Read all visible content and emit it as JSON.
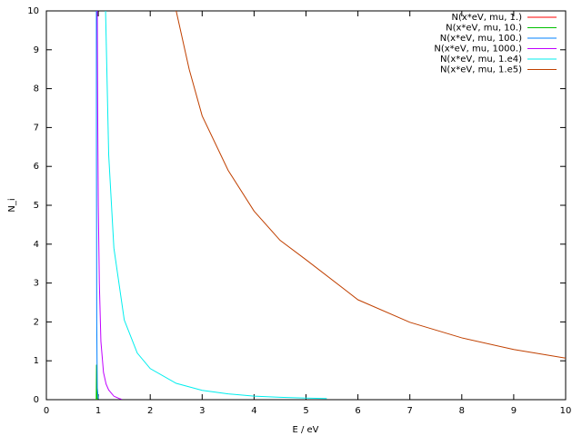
{
  "chart_data": {
    "type": "line",
    "xlabel": "E / eV",
    "ylabel": "N_i",
    "xlim": [
      0,
      10
    ],
    "ylim": [
      0,
      10
    ],
    "xticks": [
      0,
      1,
      2,
      3,
      4,
      5,
      6,
      7,
      8,
      9,
      10
    ],
    "yticks": [
      0,
      1,
      2,
      3,
      4,
      5,
      6,
      7,
      8,
      9,
      10
    ],
    "grid": false,
    "legend": "top-right",
    "series": [
      {
        "name": "N(x*eV, mu, 1.)",
        "color": "#ff0000",
        "x": [
          0.96,
          0.965,
          0.97
        ],
        "values": [
          0,
          0.05,
          0
        ]
      },
      {
        "name": "N(x*eV, mu, 10.)",
        "color": "#00c000",
        "x": [
          0.96,
          0.965,
          0.97,
          0.98
        ],
        "values": [
          0,
          0.9,
          0.3,
          0
        ]
      },
      {
        "name": "N(x*eV, mu, 100.)",
        "color": "#0080ff",
        "x": [
          0.963,
          0.965,
          0.97,
          0.98,
          1.0
        ],
        "values": [
          10,
          6,
          2,
          0.3,
          0.02
        ]
      },
      {
        "name": "N(x*eV, mu, 1000.)",
        "color": "#c000ff",
        "x": [
          0.98,
          0.99,
          1.0,
          1.02,
          1.05,
          1.1,
          1.15,
          1.2,
          1.3,
          1.4,
          1.45
        ],
        "values": [
          10,
          7,
          5,
          3,
          1.5,
          0.7,
          0.4,
          0.25,
          0.09,
          0.03,
          0.01
        ]
      },
      {
        "name": "N(x*eV, mu, 1.e4)",
        "color": "#00eeee",
        "x": [
          1.14,
          1.2,
          1.3,
          1.5,
          1.75,
          2,
          2.5,
          3,
          3.5,
          4,
          4.5,
          5,
          5.4
        ],
        "values": [
          10,
          6.3,
          3.9,
          2.05,
          1.2,
          0.8,
          0.42,
          0.24,
          0.15,
          0.09,
          0.06,
          0.04,
          0.03
        ]
      },
      {
        "name": "N(x*eV, mu, 1.e5)",
        "color": "#c04000",
        "x": [
          2.5,
          2.75,
          3,
          3.5,
          4,
          4.5,
          5,
          6,
          7,
          8,
          9,
          10
        ],
        "values": [
          10,
          8.5,
          7.3,
          5.9,
          4.85,
          4.1,
          3.6,
          2.57,
          1.99,
          1.59,
          1.29,
          1.07
        ]
      }
    ]
  }
}
